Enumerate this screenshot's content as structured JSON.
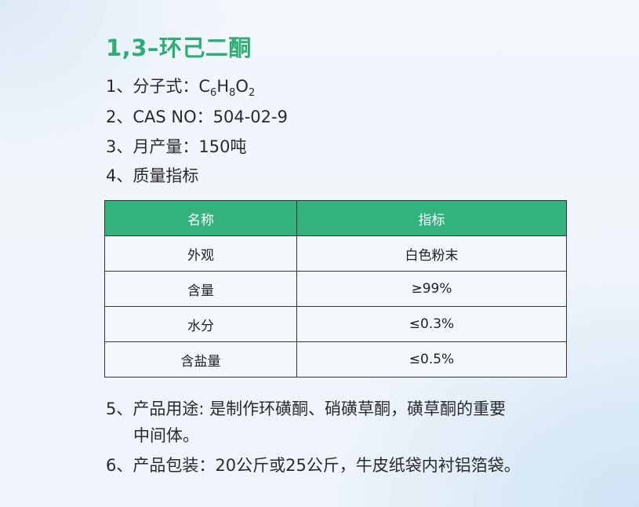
{
  "title": "1,3–环己二酮",
  "items": {
    "i1_label": "1、分子式：",
    "formula": {
      "c": "C",
      "c_n": "6",
      "h": "H",
      "h_n": "8",
      "o": "O",
      "o_n": "2"
    },
    "i2": "2、CAS NO：504-02-9",
    "i3": "3、月产量：150吨",
    "i4": "4、质量指标",
    "i5a": "5、产品用途: 是制作环磺酮、硝磺草酮，磺草酮的重要",
    "i5b": "中间体。",
    "i6": "6、产品包装：20公斤或25公斤，牛皮纸袋内衬铝箔袋。"
  },
  "table": {
    "headers": [
      "名称",
      "指标"
    ],
    "rows": [
      [
        "外观",
        "白色粉末"
      ],
      [
        "含量",
        "≥99%"
      ],
      [
        "水分",
        "≤0.3%"
      ],
      [
        "含盐量",
        "≤0.5%"
      ]
    ]
  },
  "colors": {
    "accent": "#2fae74",
    "header_bg": "#33b27d"
  }
}
